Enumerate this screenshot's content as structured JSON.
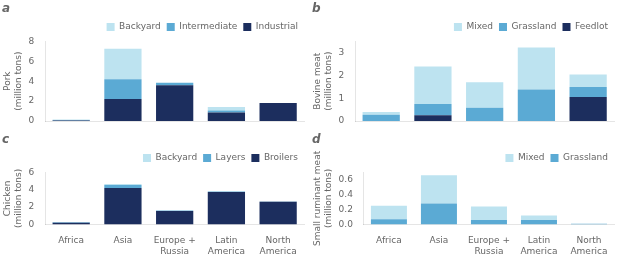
{
  "chart_data": [
    {
      "type": "bar",
      "title": "a",
      "ylabel": "Pork\n(million tons)",
      "categories": [
        "Africa",
        "Asia",
        "Europe +\nRussia",
        "Latin\nAmerica",
        "North\nAmerica"
      ],
      "series": [
        {
          "name": "Industrial",
          "color": "#1C2E5E",
          "values": [
            0.05,
            2.2,
            3.6,
            0.85,
            1.8
          ]
        },
        {
          "name": "Intermediate",
          "color": "#5BAAD4",
          "values": [
            0.05,
            2.0,
            0.25,
            0.2,
            0.0
          ]
        },
        {
          "name": "Backyard",
          "color": "#BDE3F0",
          "values": [
            0.05,
            3.05,
            0.0,
            0.35,
            0.0
          ]
        }
      ],
      "ylim": [
        0,
        8
      ],
      "yticks": [
        0,
        2,
        4,
        6,
        8
      ],
      "stacked": true,
      "legend": "upper right",
      "grid": false,
      "tick_labels": "y"
    },
    {
      "type": "bar",
      "title": "b",
      "ylabel": "Bovine meat\n(million tons)",
      "categories": [
        "Africa",
        "Asia",
        "Europe +\nRussia",
        "Latin\nAmerica",
        "North\nAmerica"
      ],
      "series": [
        {
          "name": "Feedlot",
          "color": "#1C2E5E",
          "values": [
            0.0,
            0.25,
            0.0,
            0.0,
            1.05
          ]
        },
        {
          "name": "Grassland",
          "color": "#5BAAD4",
          "values": [
            0.28,
            0.5,
            0.58,
            1.38,
            0.45
          ]
        },
        {
          "name": "Mixed",
          "color": "#BDE3F0",
          "values": [
            0.12,
            1.65,
            1.12,
            1.85,
            0.55
          ]
        }
      ],
      "ylim": [
        0,
        3.5
      ],
      "yticks": [
        0,
        1,
        2,
        3
      ],
      "stacked": true,
      "legend": "upper right",
      "grid": false,
      "tick_labels": "y"
    },
    {
      "type": "bar",
      "title": "c",
      "ylabel": "Chicken\n(million tons)",
      "categories": [
        "Africa",
        "Asia",
        "Europe +\nRussia",
        "Latin\nAmerica",
        "North\nAmerica"
      ],
      "series": [
        {
          "name": "Broilers",
          "color": "#1C2E5E",
          "values": [
            0.2,
            4.2,
            1.55,
            3.75,
            2.6
          ]
        },
        {
          "name": "Layers",
          "color": "#5BAAD4",
          "values": [
            0.05,
            0.35,
            0.05,
            0.05,
            0.05
          ]
        },
        {
          "name": "Backyard",
          "color": "#BDE3F0",
          "values": [
            0.02,
            0.12,
            0.0,
            0.0,
            0.0
          ]
        }
      ],
      "ylim": [
        0,
        6
      ],
      "yticks": [
        0,
        2,
        4,
        6
      ],
      "stacked": true,
      "legend": "upper right",
      "grid": false
    },
    {
      "type": "bar",
      "title": "d",
      "ylabel": "Small ruminant meat\n(million tons)",
      "categories": [
        "Africa",
        "Asia",
        "Europe +\nRussia",
        "Latin\nAmerica",
        "North\nAmerica"
      ],
      "series": [
        {
          "name": "Grassland",
          "color": "#5BAAD4",
          "values": [
            0.07,
            0.28,
            0.06,
            0.06,
            0.01
          ]
        },
        {
          "name": "Mixed",
          "color": "#BDE3F0",
          "values": [
            0.18,
            0.38,
            0.18,
            0.06,
            0.0
          ]
        }
      ],
      "ylim": [
        0,
        0.7
      ],
      "yticks": [
        {
          "value": 0.0,
          "label": "0.0"
        },
        0.2,
        0.4,
        0.6
      ],
      "stacked": true,
      "legend": "upper right",
      "grid": false
    }
  ]
}
